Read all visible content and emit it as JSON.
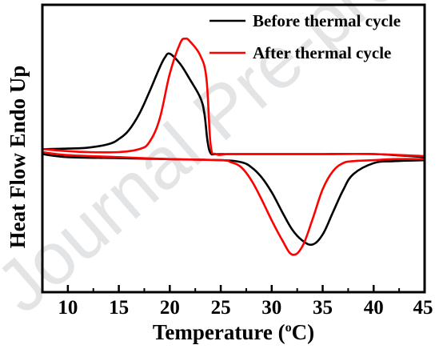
{
  "watermark": "Journal Pre-proof",
  "chart_data": {
    "type": "line",
    "xlabel": "Temperature (°C)",
    "xlabel_parts": {
      "before": "Temperature (",
      "sup": "o",
      "after": "C)"
    },
    "ylabel": "Heat Flow Endo Up",
    "xlim": [
      7.5,
      45
    ],
    "ylim": [
      -1.0,
      1.2
    ],
    "x_ticks": [
      10,
      15,
      20,
      25,
      30,
      35,
      40,
      45
    ],
    "y_ticks_shown": false,
    "grid": false,
    "legend_position": "top-right",
    "series": [
      {
        "name": "Before thermal cycle",
        "color": "#000000",
        "segments": [
          {
            "branch": "heating",
            "x": [
              7.5,
              10,
              12,
              14,
              15,
              16,
              17,
              18,
              19,
              19.5,
              20,
              21,
              22,
              23,
              23.4,
              23.7,
              24.0,
              24.5,
              26,
              30,
              35,
              40,
              45
            ],
            "y": [
              0.05,
              0.055,
              0.065,
              0.1,
              0.15,
              0.24,
              0.4,
              0.62,
              0.86,
              0.96,
              1.0,
              0.9,
              0.74,
              0.56,
              0.4,
              0.13,
              0.01,
              0.0,
              0.0,
              0.0,
              0.0,
              0.0,
              -0.03
            ]
          },
          {
            "branch": "cooling",
            "x": [
              7.5,
              10,
              15,
              20,
              25,
              27,
              28,
              29,
              30,
              31,
              32,
              33,
              34,
              35,
              36,
              37,
              38,
              40,
              42,
              45
            ],
            "y": [
              0.0,
              -0.03,
              -0.04,
              -0.05,
              -0.06,
              -0.08,
              -0.13,
              -0.23,
              -0.38,
              -0.57,
              -0.75,
              -0.86,
              -0.9,
              -0.8,
              -0.58,
              -0.36,
              -0.2,
              -0.09,
              -0.07,
              -0.06
            ]
          }
        ]
      },
      {
        "name": "After thermal cycle",
        "color": "#ff0000",
        "segments": [
          {
            "branch": "heating",
            "x": [
              7.5,
              10,
              12,
              15,
              17,
              18,
              19,
              20,
              21,
              21.5,
              22,
              23,
              23.6,
              24.0,
              24.5,
              26,
              30,
              35,
              40,
              45
            ],
            "y": [
              0.05,
              0.03,
              0.02,
              0.02,
              0.05,
              0.12,
              0.35,
              0.8,
              1.1,
              1.15,
              1.12,
              0.98,
              0.75,
              0.1,
              0.0,
              0.0,
              0.0,
              0.0,
              0.0,
              -0.02
            ]
          },
          {
            "branch": "cooling",
            "x": [
              7.5,
              10,
              15,
              20,
              25,
              26,
              27,
              28,
              29,
              30,
              31,
              32,
              33,
              34,
              35,
              36,
              37,
              38,
              40,
              42,
              45
            ],
            "y": [
              0.02,
              -0.01,
              -0.03,
              -0.05,
              -0.06,
              -0.08,
              -0.13,
              -0.26,
              -0.45,
              -0.66,
              -0.85,
              -1.0,
              -0.92,
              -0.65,
              -0.35,
              -0.17,
              -0.09,
              -0.07,
              -0.06,
              -0.05,
              -0.05
            ]
          }
        ]
      }
    ]
  }
}
